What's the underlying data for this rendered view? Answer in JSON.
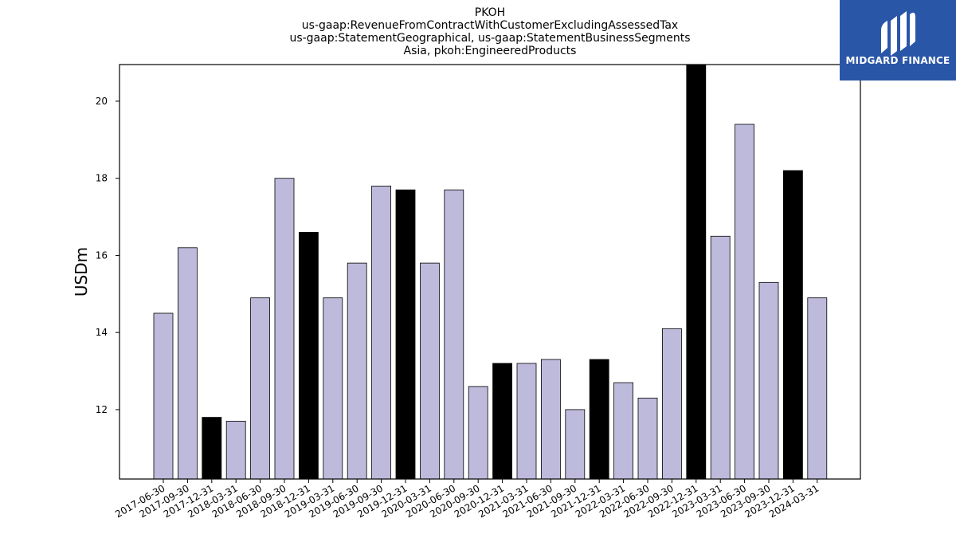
{
  "chart_data": {
    "type": "bar",
    "title_lines": [
      "PKOH",
      "us-gaap:RevenueFromContractWithCustomerExcludingAssessedTax",
      "us-gaap:StatementGeographical, us-gaap:StatementBusinessSegments",
      "Asia, pkoh:EngineeredProducts"
    ],
    "xlabel": "",
    "ylabel": "USDm",
    "ylim": [
      10.2,
      20.95
    ],
    "yticks": [
      12,
      14,
      16,
      18,
      20
    ],
    "grid": false,
    "categories": [
      "2017-06-30",
      "2017-09-30",
      "2017-12-31",
      "2018-03-31",
      "2018-06-30",
      "2018-09-30",
      "2018-12-31",
      "2019-03-31",
      "2019-06-30",
      "2019-09-30",
      "2019-12-31",
      "2020-03-31",
      "2020-06-30",
      "2020-09-30",
      "2020-12-31",
      "2021-03-31",
      "2021-06-30",
      "2021-09-30",
      "2021-12-31",
      "2022-03-31",
      "2022-06-30",
      "2022-09-30",
      "2022-12-31",
      "2023-03-31",
      "2023-06-30",
      "2023-09-30",
      "2023-12-31",
      "2024-03-31"
    ],
    "values": [
      14.5,
      16.2,
      11.8,
      11.7,
      14.9,
      18.0,
      16.6,
      14.9,
      15.8,
      17.8,
      17.7,
      15.8,
      17.7,
      12.6,
      13.2,
      13.2,
      13.3,
      12.0,
      13.3,
      12.7,
      12.3,
      14.1,
      21.0,
      16.5,
      19.4,
      15.3,
      18.2,
      14.9
    ],
    "highlight_quarter_end": "12-31",
    "colors": {
      "bar": "#bebadb",
      "highlight": "#000000",
      "edge": "#000000"
    }
  },
  "logo": {
    "text": "MIDGARD FINANCE",
    "background": "#2a56a8",
    "text_color": "#ffffff"
  }
}
